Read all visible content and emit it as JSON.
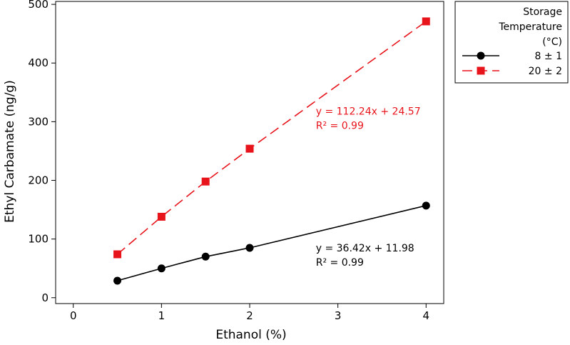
{
  "chart_data": {
    "type": "line",
    "xlabel": "Ethanol (%)",
    "ylabel": "Ethyl Carbamate (ng/g)",
    "xlim": [
      -0.2,
      4.2
    ],
    "ylim": [
      -10,
      505
    ],
    "xticks": [
      0,
      1,
      2,
      3,
      4
    ],
    "yticks": [
      0,
      100,
      200,
      300,
      400,
      500
    ],
    "grid": false,
    "legend": {
      "position": "right",
      "title_lines": [
        "Storage",
        "Temperature",
        "(°C)"
      ]
    },
    "series": [
      {
        "name": "8 ± 1",
        "color": "#000000",
        "marker": "circle",
        "line": "solid",
        "x": [
          0.5,
          1,
          1.5,
          2,
          4
        ],
        "y": [
          29,
          50,
          70,
          85,
          157
        ]
      },
      {
        "name": "20 ± 2",
        "color": "#e8141c",
        "marker": "square",
        "line": "dashed",
        "x": [
          0.5,
          1,
          1.5,
          2,
          4
        ],
        "y": [
          74,
          138,
          198,
          254,
          471
        ]
      }
    ],
    "annotations": [
      {
        "series": 1,
        "lines": [
          "y = 112.24x + 24.57",
          "R² = 0.99"
        ],
        "x": 2.75,
        "y": 312,
        "color": "#e8141c"
      },
      {
        "series": 0,
        "lines": [
          "y = 36.42x + 11.98",
          "R² = 0.99"
        ],
        "x": 2.75,
        "y": 79,
        "color": "#000000"
      }
    ]
  }
}
